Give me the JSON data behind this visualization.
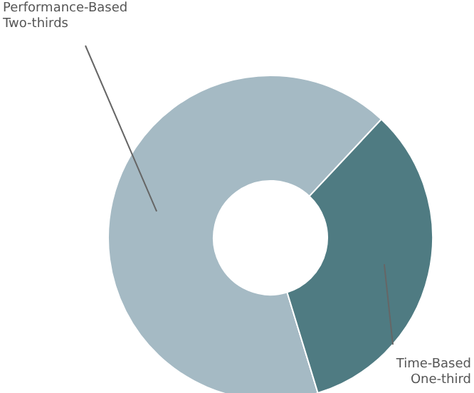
{
  "chart_data": {
    "type": "donut",
    "categories": [
      "Performance-Based Two-thirds",
      "Time-Based One-third"
    ],
    "values": [
      66.7,
      33.3
    ],
    "colors": [
      "#a5bac4",
      "#4f7b82"
    ],
    "legend": false
  }
}
